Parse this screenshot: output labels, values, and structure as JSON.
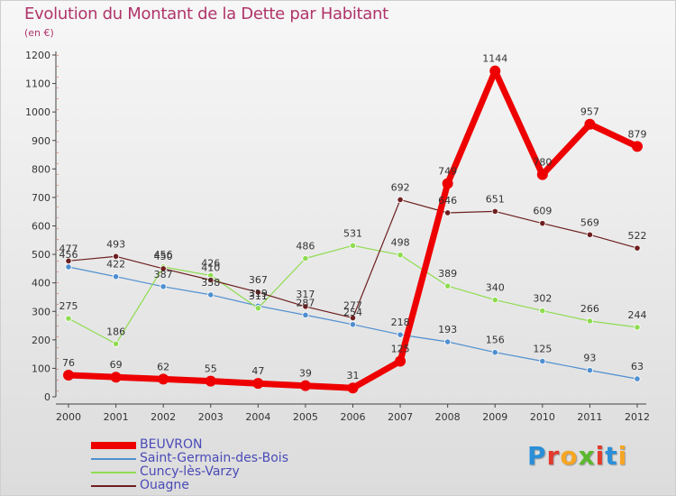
{
  "header": {
    "title": "Evolution du Montant de la Dette par Habitant",
    "unit": "(en €)"
  },
  "logo": {
    "text": "Proxiti",
    "letter_colors": [
      "#2a8fd8",
      "#e23b2e",
      "#f5a623",
      "#5bb82e",
      "#e23b2e",
      "#2a8fd8",
      "#f5a623"
    ]
  },
  "chart_data": {
    "type": "line",
    "title": "Evolution du Montant de la Dette par Habitant",
    "ylabel": "(en €)",
    "xlabel": "",
    "x": [
      "2000",
      "2001",
      "2002",
      "2003",
      "2004",
      "2005",
      "2006",
      "2007",
      "2008",
      "2009",
      "2010",
      "2011",
      "2012"
    ],
    "ylim": [
      0,
      1200
    ],
    "yticks": [
      0,
      100,
      200,
      300,
      400,
      500,
      600,
      700,
      800,
      900,
      1000,
      1100,
      1200
    ],
    "grid": false,
    "legend_position": "bottom-left",
    "series": [
      {
        "name": "BEUVRON",
        "color": "#ee0000",
        "emphasis": true,
        "values": [
          76,
          69,
          62,
          55,
          47,
          39,
          31,
          125,
          749,
          1144,
          780,
          957,
          879
        ]
      },
      {
        "name": "Saint-Germain-des-Bois",
        "color": "#4f8fd0",
        "emphasis": false,
        "values": [
          456,
          422,
          387,
          358,
          319,
          287,
          254,
          218,
          193,
          156,
          125,
          93,
          63
        ]
      },
      {
        "name": "Cuncy-lès-Varzy",
        "color": "#8fdc50",
        "emphasis": false,
        "values": [
          275,
          186,
          456,
          426,
          311,
          486,
          531,
          498,
          389,
          340,
          302,
          266,
          244
        ]
      },
      {
        "name": "Ouagne",
        "color": "#6e1f1f",
        "emphasis": false,
        "values": [
          477,
          493,
          450,
          410,
          367,
          317,
          277,
          692,
          646,
          651,
          609,
          569,
          522
        ]
      }
    ]
  }
}
